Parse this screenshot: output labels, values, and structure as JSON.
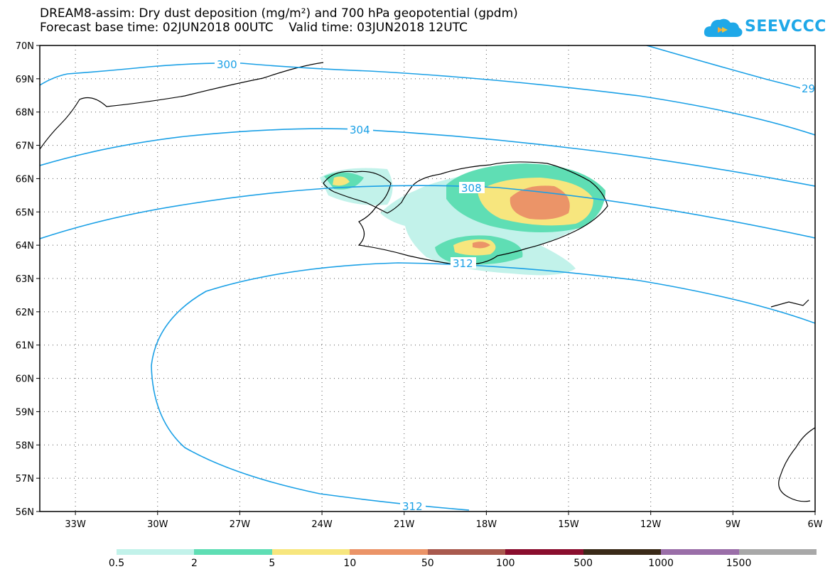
{
  "title": {
    "line1": "DREAM8-assim: Dry dust deposition (mg/m²) and 700 hPa geopotential (gpdm)",
    "line2": "Forecast base time: 02JUN2018 00UTC    Valid time: 03JUN2018 12UTC"
  },
  "logo": {
    "text": "SEEVCCC",
    "icon": "cloud-icon",
    "color": "#1fa8e8"
  },
  "map": {
    "lon_range": [
      "34.3W",
      "6W"
    ],
    "lat_range": [
      "56N",
      "70N"
    ],
    "lon_ticks": [
      "33W",
      "30W",
      "27W",
      "24W",
      "21W",
      "18W",
      "15W",
      "12W",
      "9W",
      "6W"
    ],
    "lat_ticks": [
      "70N",
      "69N",
      "68N",
      "67N",
      "66N",
      "65N",
      "64N",
      "63N",
      "62N",
      "61N",
      "60N",
      "59N",
      "58N",
      "57N",
      "56N"
    ],
    "contour_color": "#1aa0e6",
    "contour_labels": [
      "300",
      "29",
      "304",
      "308",
      "312",
      "312"
    ]
  },
  "legend": {
    "labels": [
      "0.5",
      "2",
      "5",
      "10",
      "50",
      "100",
      "500",
      "1000",
      "1500"
    ],
    "colors": [
      "#c2f2ea",
      "#5fdeb4",
      "#f7e67e",
      "#eb9468",
      "#a95a4e",
      "#8a0e2e",
      "#3a2a18",
      "#9a6ea8",
      "#a8a8a8"
    ]
  }
}
